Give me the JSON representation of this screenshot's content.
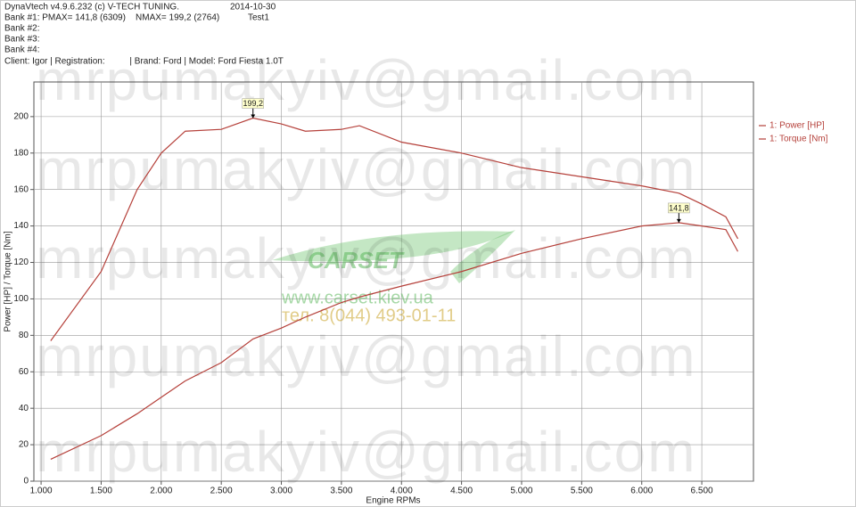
{
  "header": {
    "software": "DynaVtech v4.9.6.232 (c) V-TECH TUNING.",
    "date": "2014-10-30",
    "bank1": "Bank #1: PMAX= 141,8 (6309)    NMAX= 199,2 (2764)",
    "test": "Test1",
    "bank2": "Bank #2:",
    "bank3": "Bank #3:",
    "bank4": "Bank #4:",
    "client": "Client: Igor | Registration:          | Brand: Ford | Model: Ford Fiesta 1.0T"
  },
  "watermark": {
    "email": "mrpumakyiv@gmail.com",
    "logo": "CARSET",
    "site": "www.carset.kiev.ua",
    "phone": "тел. 8(044) 493-01-11"
  },
  "chart_data": {
    "type": "line",
    "x_label": "Engine RPMs",
    "y_label": "Power [HP] / Torque [Nm]",
    "x": [
      1080,
      1500,
      1800,
      2000,
      2200,
      2500,
      2764,
      3000,
      3200,
      3500,
      3650,
      4000,
      4500,
      5000,
      5500,
      6000,
      6309,
      6500,
      6700,
      6800
    ],
    "series": [
      {
        "name": "1: Power [HP]",
        "color": "#b5403a",
        "values": [
          12,
          25,
          37,
          46,
          55,
          65,
          78,
          84,
          90,
          98,
          101,
          107,
          115,
          125,
          133,
          140,
          141.8,
          140,
          138,
          126
        ],
        "value_labels": [
          null,
          null,
          null,
          null,
          null,
          null,
          null,
          null,
          null,
          null,
          null,
          null,
          null,
          null,
          null,
          null,
          "141,8",
          null,
          null,
          null
        ]
      },
      {
        "name": "1: Torque [Nm]",
        "color": "#b5403a",
        "values": [
          77,
          115,
          160,
          180,
          192,
          193,
          199.2,
          196,
          192,
          193,
          195,
          186,
          180,
          172,
          167,
          162,
          158,
          152,
          145,
          133
        ],
        "value_labels": [
          null,
          null,
          null,
          null,
          null,
          null,
          "199,2",
          null,
          null,
          null,
          null,
          null,
          null,
          null,
          null,
          null,
          null,
          null,
          null,
          null
        ]
      }
    ],
    "xlim": [
      940,
      6930
    ],
    "ylim": [
      0,
      219
    ],
    "xticks": [
      {
        "value": 1000,
        "label": "1.000"
      },
      {
        "value": 1500,
        "label": "1.500"
      },
      {
        "value": 2000,
        "label": "2.000"
      },
      {
        "value": 2500,
        "label": "2.500"
      },
      {
        "value": 3000,
        "label": "3.000"
      },
      {
        "value": 3500,
        "label": "3.500"
      },
      {
        "value": 4000,
        "label": "4.000"
      },
      {
        "value": 4500,
        "label": "4.500"
      },
      {
        "value": 5000,
        "label": "5.000"
      },
      {
        "value": 5500,
        "label": "5.500"
      },
      {
        "value": 6000,
        "label": "6.000"
      },
      {
        "value": 6500,
        "label": "6.500"
      }
    ],
    "yticks": [
      0,
      20,
      40,
      60,
      80,
      100,
      120,
      140,
      160,
      180,
      200
    ],
    "grid": true,
    "legend": "top-right"
  }
}
